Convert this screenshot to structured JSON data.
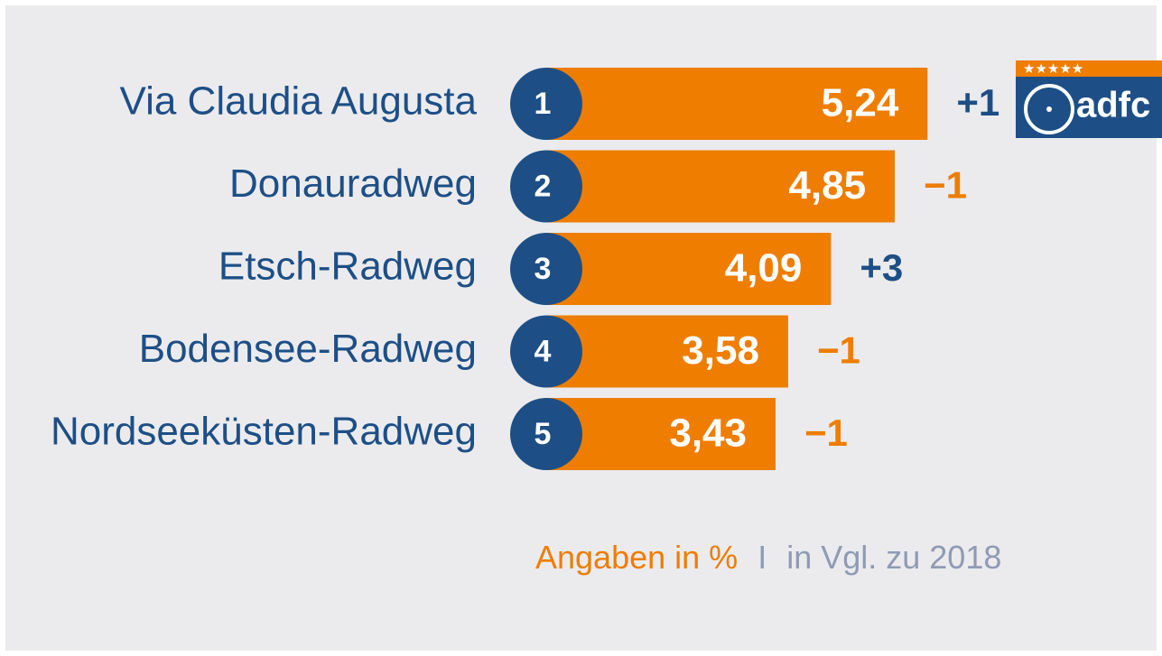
{
  "chart_data": {
    "type": "bar",
    "orientation": "horizontal",
    "categories": [
      "Via Claudia Augusta",
      "Donauradweg",
      "Etsch-Radweg",
      "Bodensee-Radweg",
      "Nordseeküsten-Radweg"
    ],
    "values": [
      5.24,
      4.85,
      4.09,
      3.58,
      3.43
    ],
    "value_labels": [
      "5,24",
      "4,85",
      "4,09",
      "3,58",
      "3,43"
    ],
    "ranks": [
      1,
      2,
      3,
      4,
      5
    ],
    "changes": [
      "+1",
      "−1",
      "+3",
      "−1",
      "−1"
    ],
    "change_colors": [
      "#1d4f86",
      "#ee7d00",
      "#1d4f86",
      "#ee7d00",
      "#ee7d00"
    ],
    "color": "#ee7d00",
    "rank_color": "#1d4f86",
    "footer": {
      "unit": "Angaben in %",
      "separator": "I",
      "comparison": "in Vgl. zu 2018"
    },
    "logo": {
      "stars": "★★★★★",
      "text": "adfc"
    }
  }
}
